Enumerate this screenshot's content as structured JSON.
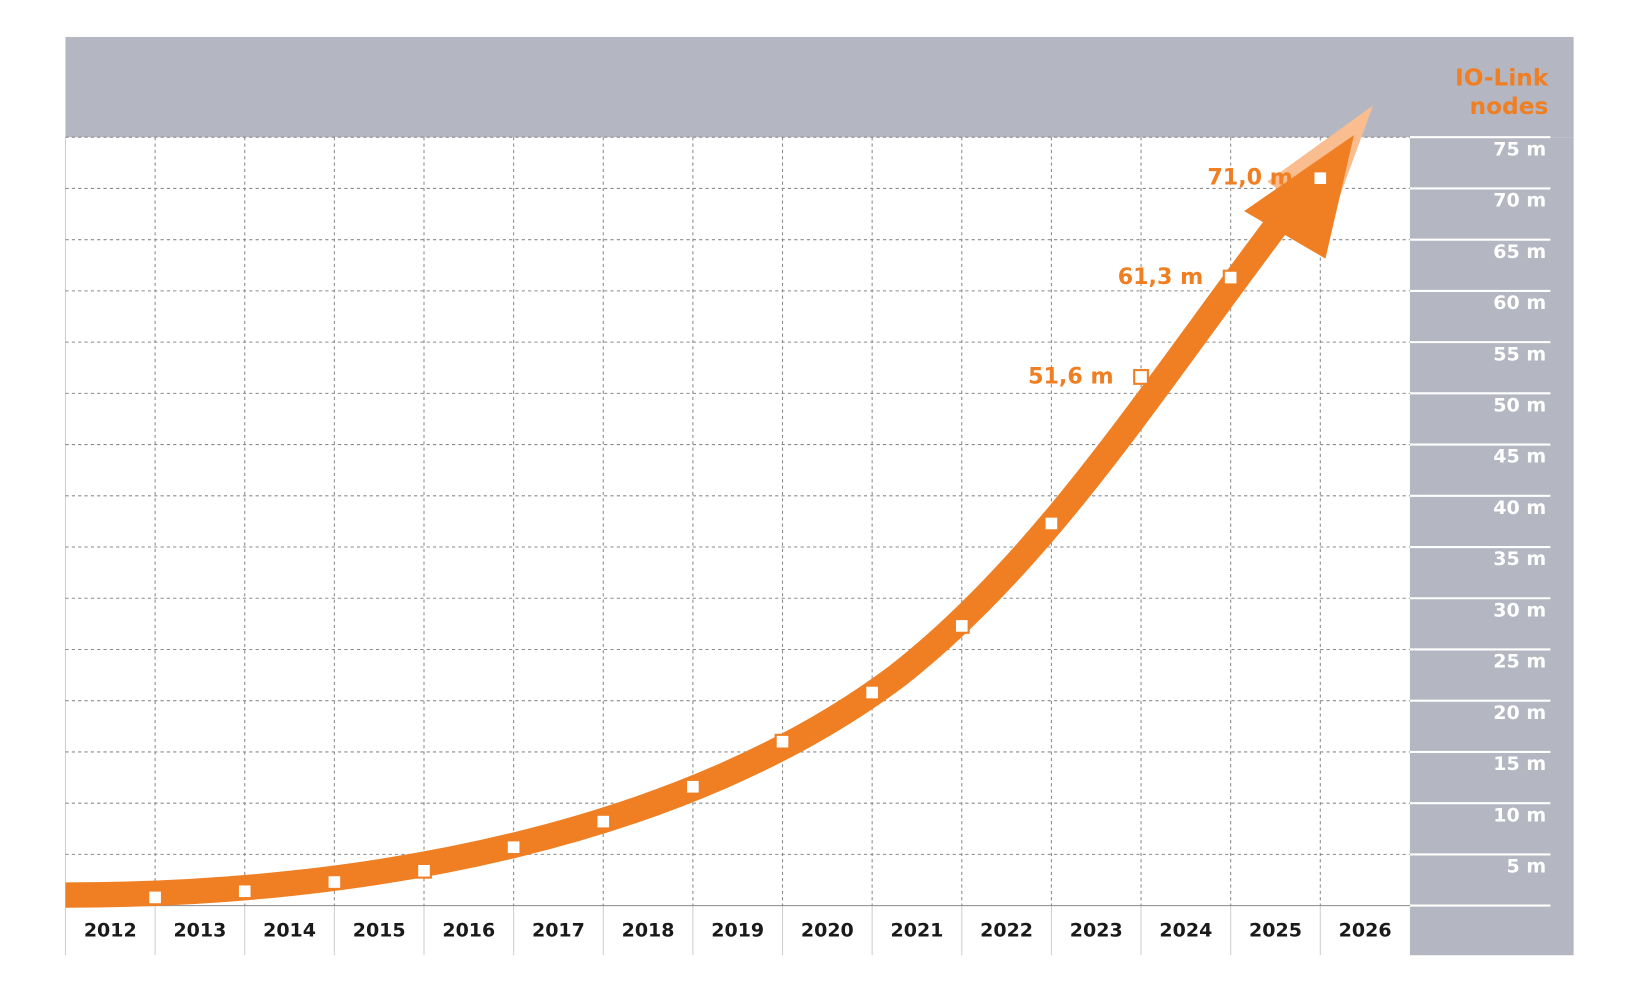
{
  "chart_data": {
    "type": "line",
    "y_label": [
      "IO-Link",
      "nodes"
    ],
    "categories": [
      "2012",
      "2013",
      "2014",
      "2015",
      "2016",
      "2017",
      "2018",
      "2019",
      "2020",
      "2021",
      "2022",
      "2023",
      "2024",
      "2025",
      "2026"
    ],
    "values": [
      null,
      0.8,
      1.4,
      2.3,
      3.4,
      5.7,
      8.2,
      11.6,
      16.0,
      20.8,
      27.3,
      37.3,
      51.6,
      61.3,
      71.0
    ],
    "value_labels": [
      null,
      null,
      null,
      null,
      null,
      null,
      null,
      null,
      null,
      null,
      null,
      null,
      "51,6 m",
      "61,3 m",
      "71,0 m"
    ],
    "color": "#ef7f22",
    "ylim": [
      0,
      75
    ],
    "yticks": [
      {
        "value": 5,
        "label": "5 m"
      },
      {
        "value": 10,
        "label": "10 m"
      },
      {
        "value": 15,
        "label": "15 m"
      },
      {
        "value": 20,
        "label": "20 m"
      },
      {
        "value": 25,
        "label": "25 m"
      },
      {
        "value": 30,
        "label": "30 m"
      },
      {
        "value": 35,
        "label": "35 m"
      },
      {
        "value": 40,
        "label": "40 m"
      },
      {
        "value": 45,
        "label": "45 m"
      },
      {
        "value": 50,
        "label": "50 m"
      },
      {
        "value": 55,
        "label": "55 m"
      },
      {
        "value": 60,
        "label": "60 m"
      },
      {
        "value": 65,
        "label": "65 m"
      },
      {
        "value": 70,
        "label": "70 m"
      },
      {
        "value": 75,
        "label": "75 m"
      }
    ],
    "grid": true
  }
}
